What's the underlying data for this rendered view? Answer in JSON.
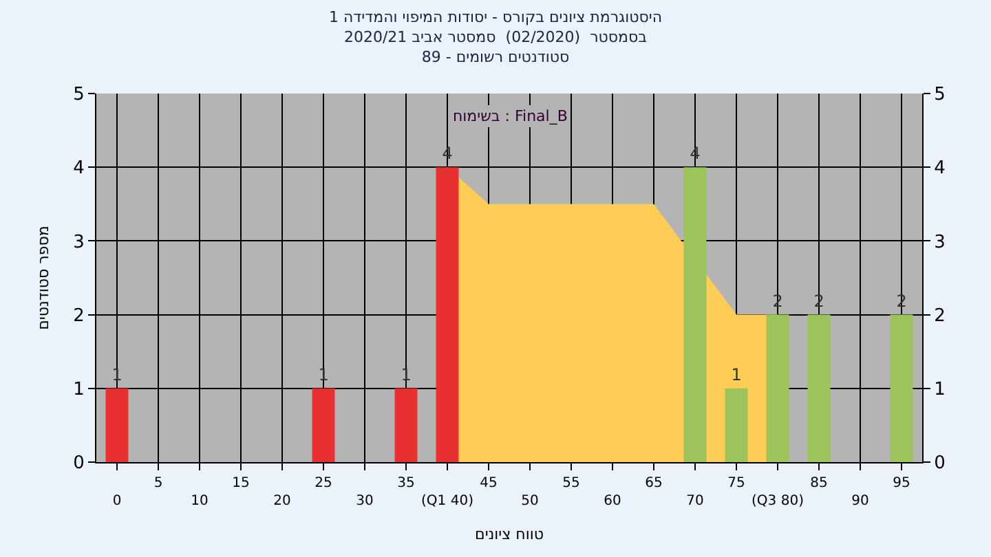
{
  "chart_data": {
    "type": "bar",
    "title": "היסטוגרמת ציונים בקורס - יסודות המיפוי והמדידה 1",
    "subtitle": "בסמסטר  (02/2020)  סמסטר אביב 2020/21\nסטודנטים רשומים - 89",
    "xlabel": "טווח ציונים",
    "ylabel": "מספר סטודנטים",
    "annotations": [
      "בשימוח : Final_B"
    ],
    "categories": [
      "0",
      "5",
      "10",
      "15",
      "20",
      "25",
      "30",
      "35",
      "(Q1 40)",
      "45",
      "50",
      "55",
      "60",
      "65",
      "70",
      "75",
      "(Q3 80)",
      "85",
      "90",
      "95"
    ],
    "series": [
      {
        "type": "area",
        "color": "#ffcc55",
        "values": [
          null,
          null,
          null,
          null,
          null,
          null,
          null,
          null,
          4,
          3.5,
          3.5,
          3.5,
          3.5,
          3.5,
          null,
          2,
          2,
          null,
          null,
          null
        ]
      },
      {
        "colors": [
          "#e83030",
          "#e83030",
          "#e83030",
          "#e83030",
          "#e83030",
          "#e83030",
          "#e83030",
          "#e83030",
          "#e83030",
          "#e83030",
          "#e83030",
          "#e83030",
          "#e83030",
          "#e83030",
          "#9cc45a",
          "#9cc45a",
          "#9cc45a",
          "#9cc45a",
          "#9cc45a",
          "#9cc45a"
        ],
        "values": [
          1,
          0,
          0,
          0,
          0,
          1,
          0,
          1,
          4,
          0,
          0,
          0,
          0,
          0,
          4,
          1,
          2,
          2,
          0,
          2
        ],
        "value_labels": [
          "1",
          null,
          null,
          null,
          null,
          "1",
          null,
          "1",
          "4",
          null,
          null,
          null,
          null,
          null,
          "4",
          "1",
          "2",
          "2",
          null,
          "2"
        ]
      }
    ],
    "ylim": [
      0,
      5
    ],
    "yticks": [
      0,
      1,
      2,
      3,
      4,
      5
    ],
    "y2lim": [
      0,
      5
    ],
    "y2ticks": [
      0,
      1,
      2,
      3,
      4,
      5
    ],
    "grid": true
  }
}
